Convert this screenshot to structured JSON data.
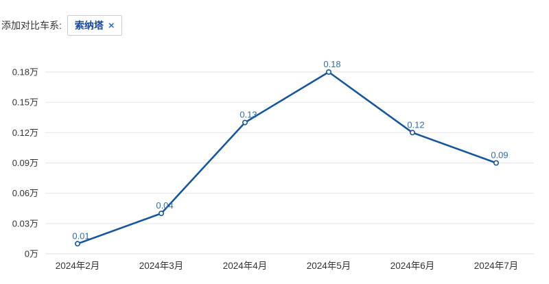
{
  "header": {
    "label": "添加对比车系:",
    "tag": {
      "label": "索纳塔",
      "close": "×"
    }
  },
  "chart_data": {
    "type": "line",
    "title": "",
    "xlabel": "",
    "ylabel": "",
    "categories": [
      "2024年2月",
      "2024年3月",
      "2024年4月",
      "2024年5月",
      "2024年6月",
      "2024年7月"
    ],
    "series": [
      {
        "name": "索纳塔",
        "values": [
          0.01,
          0.04,
          0.13,
          0.18,
          0.12,
          0.09
        ]
      }
    ],
    "point_labels": [
      "0.01",
      "0.04",
      "0.13",
      "0.18",
      "0.12",
      "0.09"
    ],
    "y_ticks": [
      0,
      0.03,
      0.06,
      0.09,
      0.12,
      0.15,
      0.18
    ],
    "y_tick_labels": [
      "0万",
      "0.03万",
      "0.06万",
      "0.09万",
      "0.12万",
      "0.15万",
      "0.18万"
    ],
    "ylim": [
      0,
      0.18
    ],
    "grid": true,
    "legend_position": "none",
    "colors": {
      "line": "#15569e",
      "marker_fill": "#ffffff",
      "point_label": "#2e6cb2",
      "grid": "#e8e8e8",
      "axis_text": "#333333"
    }
  }
}
